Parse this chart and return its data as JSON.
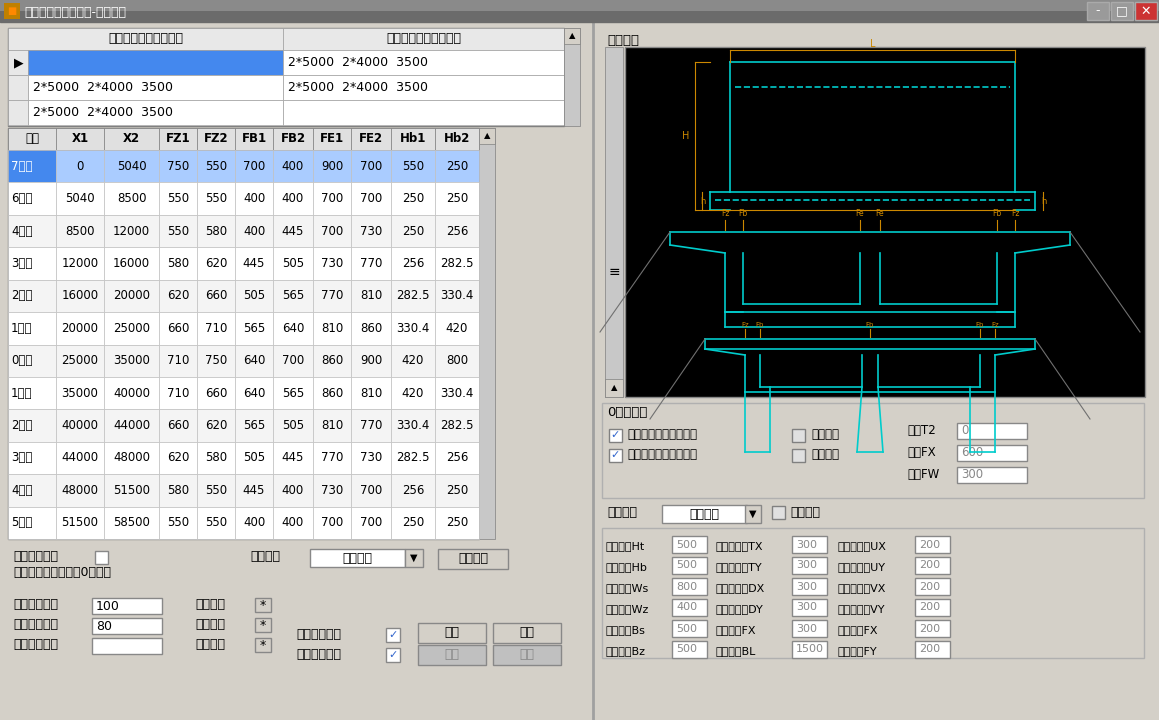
{
  "title": "变高节段浇筑连续梁-节段数据",
  "table1_headers": [
    "节段划分长度（左侧）",
    "节段划分长度（右侧）"
  ],
  "table1_rows": [
    [
      "",
      "2*5000  2*4000  3500"
    ],
    [
      "2*5000  2*4000  3500",
      "2*5000  2*4000  3500"
    ],
    [
      "2*5000  2*4000  3500",
      ""
    ]
  ],
  "table2_headers": [
    "节段",
    "X1",
    "X2",
    "FZ1",
    "FZ2",
    "FB1",
    "FB2",
    "FE1",
    "FE2",
    "Hb1",
    "Hb2"
  ],
  "table2_rows": [
    [
      "7号块",
      "0",
      "5040",
      "750",
      "550",
      "700",
      "400",
      "900",
      "700",
      "550",
      "250"
    ],
    [
      "6号块",
      "5040",
      "8500",
      "550",
      "550",
      "400",
      "400",
      "700",
      "700",
      "250",
      "250"
    ],
    [
      "4号块",
      "8500",
      "12000",
      "550",
      "580",
      "400",
      "445",
      "700",
      "730",
      "250",
      "256"
    ],
    [
      "3号块",
      "12000",
      "16000",
      "580",
      "620",
      "445",
      "505",
      "730",
      "770",
      "256",
      "282.5"
    ],
    [
      "2号块",
      "16000",
      "20000",
      "620",
      "660",
      "505",
      "565",
      "770",
      "810",
      "282.5",
      "330.4"
    ],
    [
      "1号块",
      "20000",
      "25000",
      "660",
      "710",
      "565",
      "640",
      "810",
      "860",
      "330.4",
      "420"
    ],
    [
      "0号块",
      "25000",
      "35000",
      "710",
      "750",
      "640",
      "700",
      "860",
      "900",
      "420",
      "800"
    ],
    [
      "1号块",
      "35000",
      "40000",
      "710",
      "660",
      "640",
      "565",
      "860",
      "810",
      "420",
      "330.4"
    ],
    [
      "2号块",
      "40000",
      "44000",
      "660",
      "620",
      "565",
      "505",
      "810",
      "770",
      "330.4",
      "282.5"
    ],
    [
      "3号块",
      "44000",
      "48000",
      "620",
      "580",
      "505",
      "445",
      "770",
      "730",
      "282.5",
      "256"
    ],
    [
      "4号块",
      "48000",
      "51500",
      "580",
      "550",
      "445",
      "400",
      "730",
      "700",
      "256",
      "250"
    ],
    [
      "5号块",
      "51500",
      "58500",
      "550",
      "550",
      "400",
      "400",
      "700",
      "700",
      "250",
      "250"
    ]
  ],
  "selected_row": 0,
  "graph_line_color": "#00cccc",
  "graph_dim_color": "#cc8800",
  "params": [
    [
      "顶板厚度Ht",
      "500",
      "断面倒角上TX",
      "300",
      "立面倒角上UX",
      "200"
    ],
    [
      "底板厚度Hb",
      "500",
      "断面倒角上TY",
      "300",
      "立面倒角上UY",
      "200"
    ],
    [
      "边腹板厚Ws",
      "800",
      "断面倒角下DX",
      "300",
      "立面倒角下VX",
      "200"
    ],
    [
      "中腹板厚Wz",
      "400",
      "断面倒角下DY",
      "300",
      "立面倒角下VY",
      "200"
    ],
    [
      "翼板厚度Bs",
      "500",
      "腹板倒角FX",
      "300",
      "腹板倒角FX",
      "200"
    ],
    [
      "翼板厚度Bz",
      "500",
      "中间箱宽BL",
      "1500",
      "腹板倒角FY",
      "200"
    ]
  ]
}
